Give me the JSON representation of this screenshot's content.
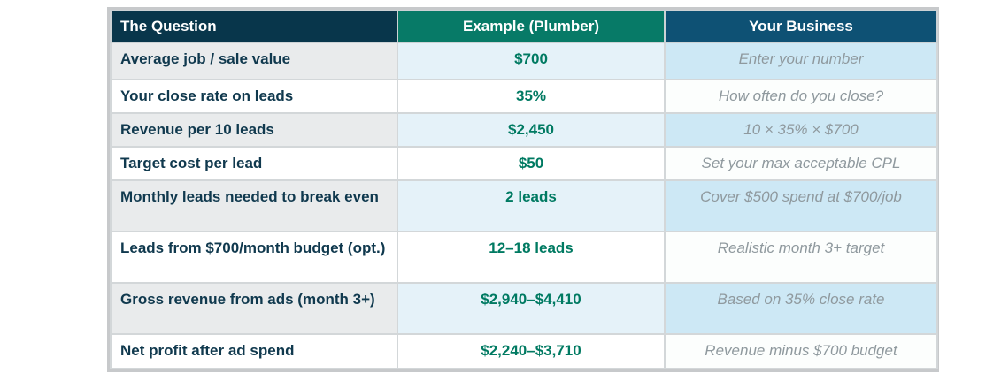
{
  "table": {
    "columns": [
      {
        "label": "The Question"
      },
      {
        "label": "Example (Plumber)"
      },
      {
        "label": "Your Business"
      }
    ],
    "rows": [
      {
        "question": "Average job / sale value",
        "example": "$700",
        "your_business": "Enter your number"
      },
      {
        "question": "Your close rate on leads",
        "example": "35%",
        "your_business": "How often do you close?"
      },
      {
        "question": "Revenue per 10 leads",
        "example": "$2,450",
        "your_business": "10 × 35% × $700"
      },
      {
        "question": "Target cost per lead",
        "example": "$50",
        "your_business": "Set your max acceptable CPL"
      },
      {
        "question": "Monthly leads needed to break even",
        "example": "2 leads",
        "your_business": "Cover $500 spend at $700/job"
      },
      {
        "question": "Leads from $700/month budget (opt.)",
        "example": "12–18 leads",
        "your_business": "Realistic month 3+ target"
      },
      {
        "question": "Gross revenue from ads (month 3+)",
        "example": "$2,940–$4,410",
        "your_business": "Based on 35% close rate"
      },
      {
        "question": "Net profit after ad spend",
        "example": "$2,240–$3,710",
        "your_business": "Revenue minus $700 budget"
      }
    ],
    "colors": {
      "header_question_bg": "#08364b",
      "header_example_bg": "#077a67",
      "header_your_business_bg": "#0e5174",
      "question_text": "#10394e",
      "example_text": "#007a62",
      "your_business_text": "#8f999e",
      "shaded_question_bg": "#e9ebec",
      "shaded_example_bg": "#e5f2f9",
      "shaded_your_business_bg": "#cde8f5",
      "outer_border": "#c7c9cb"
    }
  }
}
